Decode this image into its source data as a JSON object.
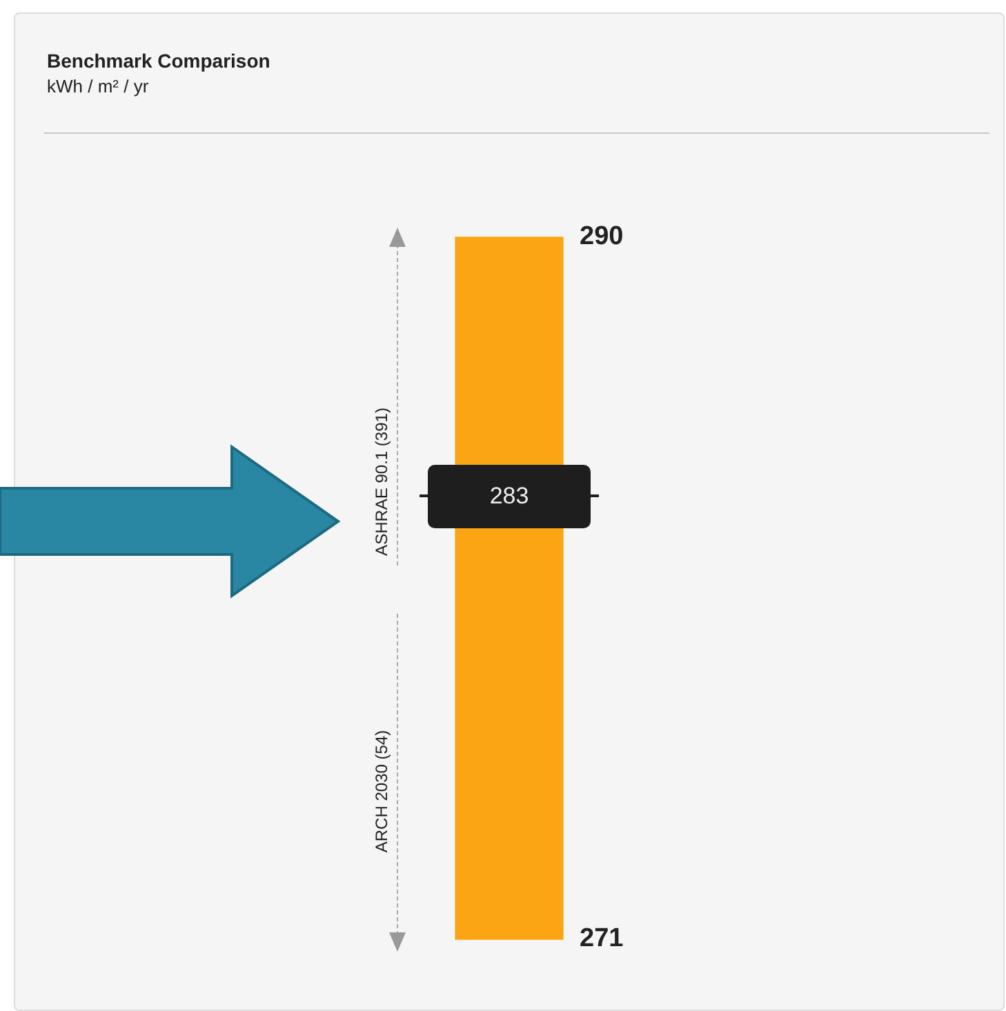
{
  "chart_data": {
    "type": "bar",
    "title": "Benchmark Comparison",
    "subtitle": "kWh / m² / yr",
    "categories": [
      null
    ],
    "values": [
      19
    ],
    "base": [
      271
    ],
    "color": "#fba514",
    "ylim": [
      271,
      290
    ],
    "yticks": [
      271,
      290
    ],
    "legend": false,
    "ref_lines": [
      {
        "axis": "y",
        "value": 283,
        "label": "283",
        "color": "#1e1e1e"
      }
    ],
    "annotations": [
      "ASHRAE 90.1 (391)",
      "ARCH 2030 (54)"
    ]
  }
}
